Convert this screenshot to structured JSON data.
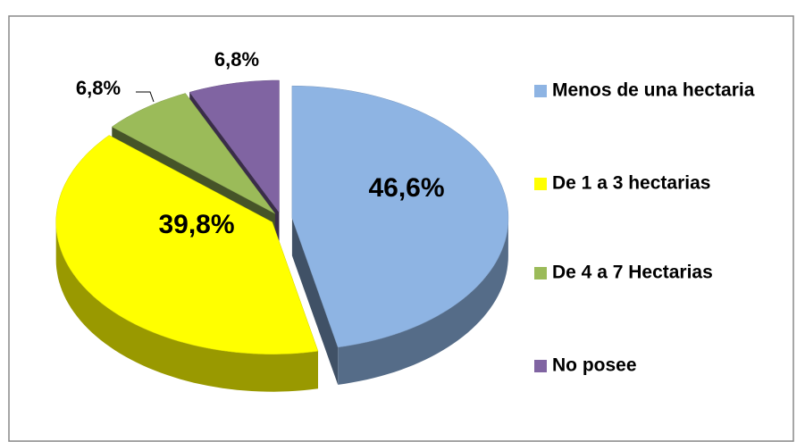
{
  "chart_data": {
    "type": "pie",
    "categories": [
      "Menos de una hectaria",
      "De 1 a 3 hectarias",
      "De 4 a 7 Hectarias",
      "No posee"
    ],
    "values": [
      46.6,
      39.8,
      6.8,
      6.8
    ],
    "value_labels": [
      "46,6%",
      "39,8%",
      "6,8%",
      "6,8%"
    ],
    "colors": [
      "#8eb4e3",
      "#ffff00",
      "#9bbb59",
      "#8064a2"
    ],
    "legend": "right"
  }
}
